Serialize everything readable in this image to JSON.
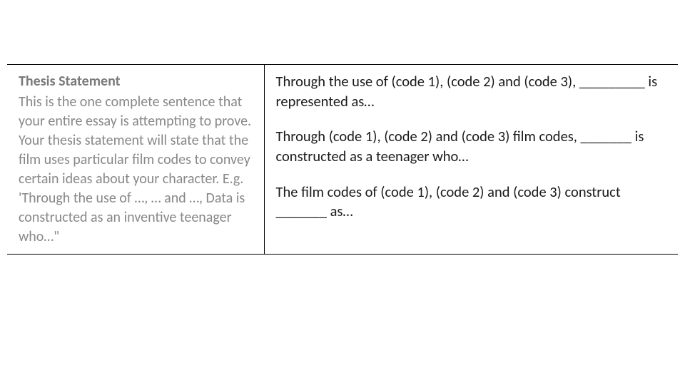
{
  "left": {
    "heading": "Thesis Statement",
    "body": "This is the one complete sentence that your entire essay is attempting to prove. Your thesis statement will state that the film uses particular film codes to convey certain ideas about your character. E.g. 'Through the use of …, … and …, Data is constructed as an inventive teenager who…\""
  },
  "right": {
    "template1": "Through the use of (code 1), (code 2) and (code 3), _________ is represented as…",
    "template2": "Through (code 1), (code 2) and (code 3) film codes, _______ is constructed as a teenager who…",
    "template3": "The film codes of (code 1), (code 2) and (code 3) construct _______ as…"
  },
  "colors": {
    "background": "#ffffff",
    "left_text": "#888888",
    "right_text": "#1a1a1a",
    "border": "#000000"
  },
  "typography": {
    "font_family": "Calibri, Arial, sans-serif",
    "left_fontsize": 20,
    "right_fontsize": 20.5,
    "line_height": 1.35
  },
  "layout": {
    "left_col_width": 360,
    "table_padding": "10px 16px",
    "right_top_pad": 36
  }
}
